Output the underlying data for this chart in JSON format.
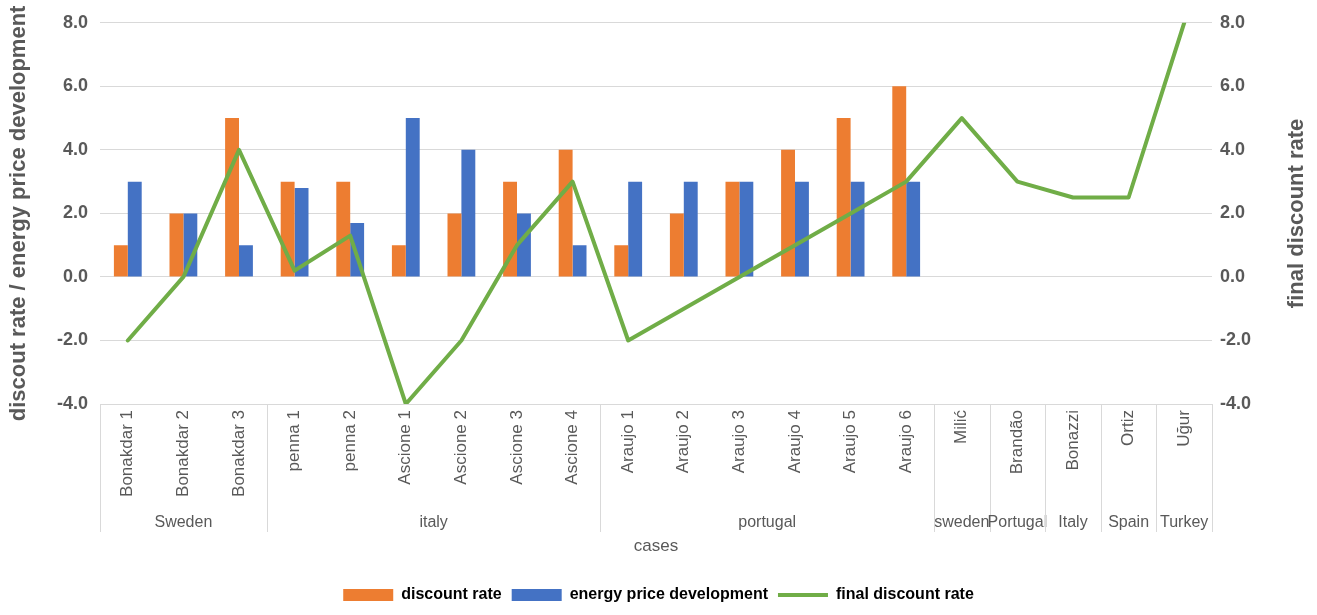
{
  "chart_data": {
    "type": "bar",
    "xlabel": "cases",
    "ylabel": "discout rate / energy price development",
    "y2label": "final discount rate",
    "categories": [
      "Bonakdar 1",
      "Bonakdar 2",
      "Bonakdar 3",
      "penna 1",
      "penna 2",
      "Ascione 1",
      "Ascione 2",
      "Ascione 3",
      "Ascione 4",
      "Araujo 1",
      "Araujo 2",
      "Araujo 3",
      "Araujo 4",
      "Araujo 5",
      "Araujo 6",
      "Milić",
      "Brandão",
      "Bonazzi",
      "Ortiz",
      "Uğur"
    ],
    "series": [
      {
        "name": "discount rate",
        "color": "#ed7d31",
        "values": [
          1,
          2,
          5,
          3,
          3,
          1,
          2,
          3,
          4,
          1,
          2,
          3,
          4,
          5,
          6,
          null,
          null,
          null,
          null,
          null
        ]
      },
      {
        "name": "energy price development",
        "color": "#4472c4",
        "values": [
          3,
          2,
          1,
          2.8,
          1.7,
          5,
          4,
          2,
          1,
          3,
          3,
          3,
          3,
          3,
          3,
          null,
          null,
          null,
          null,
          null
        ]
      },
      {
        "name": "final discount rate",
        "type": "line",
        "axis": "y2",
        "color": "#70ad47",
        "values": [
          -2,
          0,
          4,
          0.2,
          1.3,
          -4,
          -2,
          1,
          3,
          -2,
          -1,
          0,
          1,
          2,
          3,
          5,
          3,
          2.5,
          2.5,
          8
        ]
      }
    ],
    "ylim": [
      -4,
      8
    ],
    "yticks": [
      {
        "value": -4,
        "label": "-4.0"
      },
      {
        "value": -2,
        "label": "-2.0"
      },
      {
        "value": 0,
        "label": "0.0"
      },
      {
        "value": 2,
        "label": "2.0"
      },
      {
        "value": 4,
        "label": "4.0"
      },
      {
        "value": 6,
        "label": "6.0"
      },
      {
        "value": 8,
        "label": "8.0"
      }
    ],
    "y2lim": [
      -4,
      8
    ],
    "y2ticks": [
      {
        "value": -4,
        "label": "-4.0"
      },
      {
        "value": -2,
        "label": "-2.0"
      },
      {
        "value": 0,
        "label": "0.0"
      },
      {
        "value": 2,
        "label": "2.0"
      },
      {
        "value": 4,
        "label": "4.0"
      },
      {
        "value": 6,
        "label": "6.0"
      },
      {
        "value": 8,
        "label": "8.0"
      }
    ],
    "grid": "y",
    "legend": "bottom",
    "marker": "none",
    "line_style": "solid",
    "annotations": [
      "Sweden",
      "italy",
      "portugal",
      "sweden",
      "Portugal",
      "Italy",
      "Spain",
      "Turkey"
    ]
  }
}
